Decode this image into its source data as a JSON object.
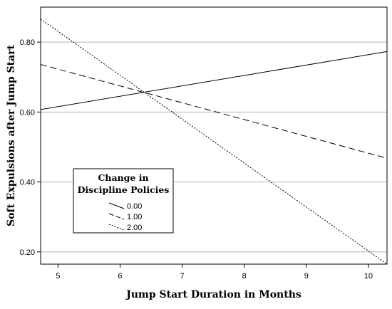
{
  "chart_data": {
    "type": "line",
    "xlabel": "Jump Start Duration in Months",
    "ylabel": "Soft Expulsions after Jump Start",
    "xlim": [
      4.72,
      10.3
    ],
    "ylim": [
      0.165,
      0.9
    ],
    "xticks": [
      5,
      6,
      7,
      8,
      9,
      10
    ],
    "xtick_labels": [
      "5",
      "6",
      "7",
      "8",
      "9",
      "10"
    ],
    "yticks": [
      0.2,
      0.4,
      0.6,
      0.8
    ],
    "ytick_labels": [
      "0.20",
      "0.40",
      "0.60",
      "0.80"
    ],
    "grid": "horizontal",
    "legend": {
      "title_lines": [
        "Change in",
        "Discipline Policies"
      ],
      "placement": "lower-left"
    },
    "series": [
      {
        "name": "0.00",
        "dash": "solid",
        "x": [
          4.72,
          10.3
        ],
        "y": [
          0.607,
          0.773
        ]
      },
      {
        "name": "1.00",
        "dash": "dashed",
        "x": [
          4.72,
          10.3
        ],
        "y": [
          0.736,
          0.468
        ]
      },
      {
        "name": "2.00",
        "dash": "dotted",
        "x": [
          4.72,
          10.3
        ],
        "y": [
          0.866,
          0.165
        ]
      }
    ]
  }
}
